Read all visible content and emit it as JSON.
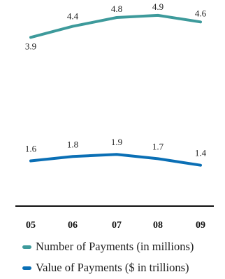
{
  "chart_data": {
    "type": "line",
    "categories": [
      "05",
      "06",
      "07",
      "08",
      "09"
    ],
    "series": [
      {
        "name": "Number of Payments (in millions)",
        "values": [
          3.9,
          4.4,
          4.8,
          4.9,
          4.6
        ],
        "color": "#3d9a9b"
      },
      {
        "name": "Value of Payments ($ in trillions)",
        "values": [
          1.6,
          1.8,
          1.9,
          1.7,
          1.4
        ],
        "color": "#0a6fb5"
      }
    ],
    "grid": false,
    "legend": "bottom"
  }
}
